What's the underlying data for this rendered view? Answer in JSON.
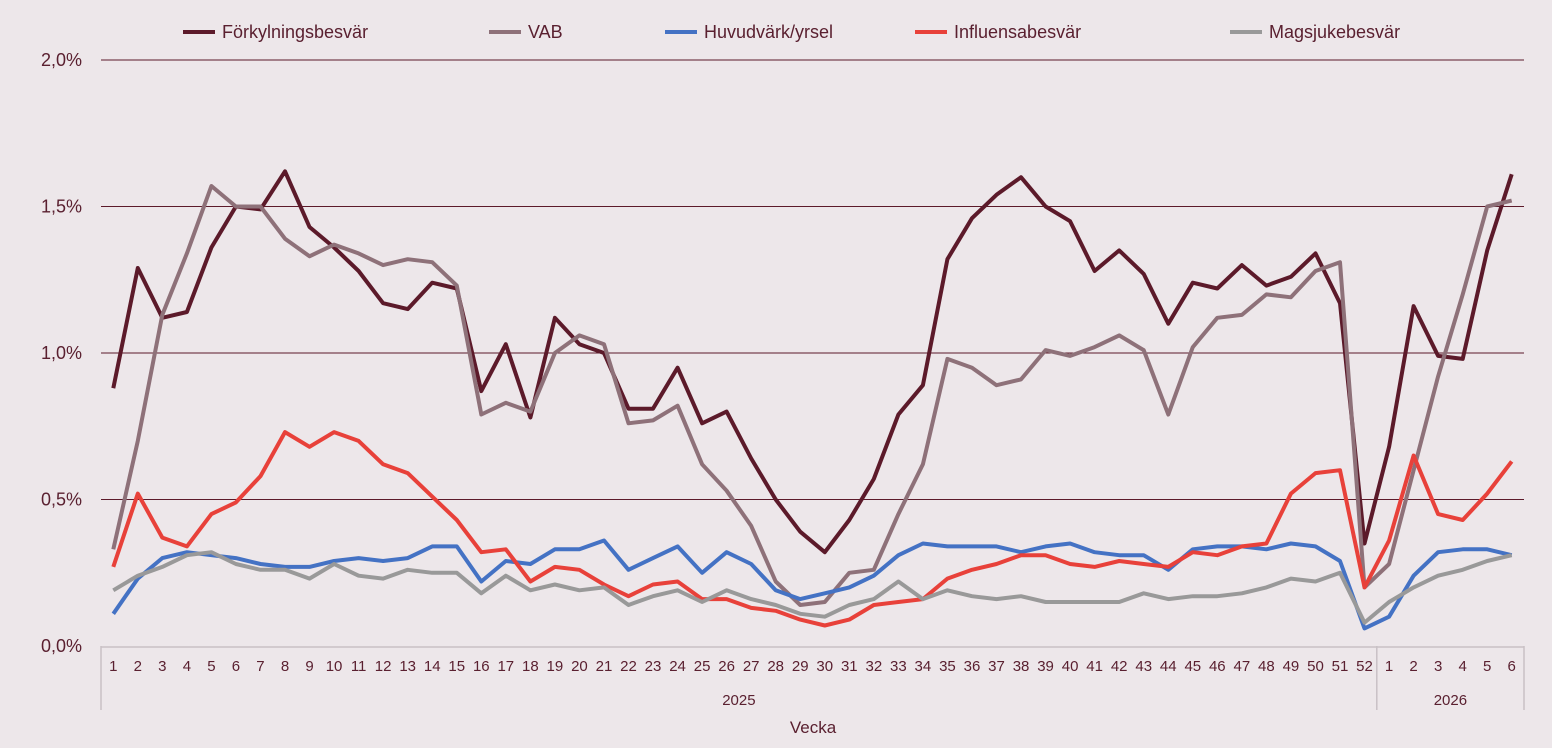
{
  "chart_data": {
    "type": "line",
    "title": "",
    "xlabel": "Vecka",
    "ylabel": "",
    "ylim": [
      0,
      2.0
    ],
    "y_ticks": [
      0,
      0.5,
      1.0,
      1.5,
      2.0
    ],
    "y_tick_labels": [
      "0,0%",
      "0,5%",
      "1,0%",
      "1,5%",
      "2,0%"
    ],
    "grid": true,
    "legend_position": "top",
    "categories": [
      "1",
      "2",
      "3",
      "4",
      "5",
      "6",
      "7",
      "8",
      "9",
      "10",
      "11",
      "12",
      "13",
      "14",
      "15",
      "16",
      "17",
      "18",
      "19",
      "20",
      "21",
      "22",
      "23",
      "24",
      "25",
      "26",
      "27",
      "28",
      "29",
      "30",
      "31",
      "32",
      "33",
      "34",
      "35",
      "36",
      "37",
      "38",
      "39",
      "40",
      "41",
      "42",
      "43",
      "44",
      "45",
      "46",
      "47",
      "48",
      "49",
      "50",
      "51",
      "52",
      "1",
      "2",
      "3",
      "4",
      "5",
      "6"
    ],
    "category_groups": [
      {
        "label": "2025",
        "count": 52
      },
      {
        "label": "2026",
        "count": 6
      }
    ],
    "series": [
      {
        "name": "Förkylningsbesvär",
        "color": "#5c1a2a",
        "values": [
          0.88,
          1.29,
          1.12,
          1.14,
          1.36,
          1.5,
          1.49,
          1.62,
          1.43,
          1.36,
          1.28,
          1.17,
          1.15,
          1.24,
          1.22,
          0.87,
          1.03,
          0.78,
          1.12,
          1.03,
          1.0,
          0.81,
          0.81,
          0.95,
          0.76,
          0.8,
          0.64,
          0.5,
          0.39,
          0.32,
          0.43,
          0.57,
          0.79,
          0.89,
          1.32,
          1.46,
          1.54,
          1.6,
          1.5,
          1.45,
          1.28,
          1.35,
          1.27,
          1.1,
          1.24,
          1.22,
          1.3,
          1.23,
          1.26,
          1.34,
          1.17,
          0.35,
          0.68,
          1.16,
          0.99,
          0.98,
          1.35,
          1.61
        ]
      },
      {
        "name": "VAB",
        "color": "#8e7179",
        "values": [
          0.33,
          0.7,
          1.13,
          1.34,
          1.57,
          1.5,
          1.5,
          1.39,
          1.33,
          1.37,
          1.34,
          1.3,
          1.32,
          1.31,
          1.23,
          0.79,
          0.83,
          0.8,
          1.0,
          1.06,
          1.03,
          0.76,
          0.77,
          0.82,
          0.62,
          0.53,
          0.41,
          0.22,
          0.14,
          0.15,
          0.25,
          0.26,
          0.45,
          0.62,
          0.98,
          0.95,
          0.89,
          0.91,
          1.01,
          0.99,
          1.02,
          1.06,
          1.01,
          0.79,
          1.02,
          1.12,
          1.13,
          1.2,
          1.19,
          1.28,
          1.31,
          0.2,
          0.28,
          0.6,
          0.92,
          1.2,
          1.5,
          1.52
        ]
      },
      {
        "name": "Huvudvärk/yrsel",
        "color": "#4472c4",
        "values": [
          0.11,
          0.23,
          0.3,
          0.32,
          0.31,
          0.3,
          0.28,
          0.27,
          0.27,
          0.29,
          0.3,
          0.29,
          0.3,
          0.34,
          0.34,
          0.22,
          0.29,
          0.28,
          0.33,
          0.33,
          0.36,
          0.26,
          0.3,
          0.34,
          0.25,
          0.32,
          0.28,
          0.19,
          0.16,
          0.18,
          0.2,
          0.24,
          0.31,
          0.35,
          0.34,
          0.34,
          0.34,
          0.32,
          0.34,
          0.35,
          0.32,
          0.31,
          0.31,
          0.26,
          0.33,
          0.34,
          0.34,
          0.33,
          0.35,
          0.34,
          0.29,
          0.06,
          0.1,
          0.24,
          0.32,
          0.33,
          0.33,
          0.31
        ]
      },
      {
        "name": "Influensabesvär",
        "color": "#e8413a",
        "values": [
          0.27,
          0.52,
          0.37,
          0.34,
          0.45,
          0.49,
          0.58,
          0.73,
          0.68,
          0.73,
          0.7,
          0.62,
          0.59,
          0.51,
          0.43,
          0.32,
          0.33,
          0.22,
          0.27,
          0.26,
          0.21,
          0.17,
          0.21,
          0.22,
          0.16,
          0.16,
          0.13,
          0.12,
          0.09,
          0.07,
          0.09,
          0.14,
          0.15,
          0.16,
          0.23,
          0.26,
          0.28,
          0.31,
          0.31,
          0.28,
          0.27,
          0.29,
          0.28,
          0.27,
          0.32,
          0.31,
          0.34,
          0.35,
          0.52,
          0.59,
          0.6,
          0.2,
          0.36,
          0.65,
          0.45,
          0.43,
          0.52,
          0.63
        ]
      },
      {
        "name": "Magsjukebesvär",
        "color": "#999999",
        "values": [
          0.19,
          0.24,
          0.27,
          0.31,
          0.32,
          0.28,
          0.26,
          0.26,
          0.23,
          0.28,
          0.24,
          0.23,
          0.26,
          0.25,
          0.25,
          0.18,
          0.24,
          0.19,
          0.21,
          0.19,
          0.2,
          0.14,
          0.17,
          0.19,
          0.15,
          0.19,
          0.16,
          0.14,
          0.11,
          0.1,
          0.14,
          0.16,
          0.22,
          0.16,
          0.19,
          0.17,
          0.16,
          0.17,
          0.15,
          0.15,
          0.15,
          0.15,
          0.18,
          0.16,
          0.17,
          0.17,
          0.18,
          0.2,
          0.23,
          0.22,
          0.25,
          0.08,
          0.15,
          0.2,
          0.24,
          0.26,
          0.29,
          0.31
        ]
      }
    ]
  },
  "colors": {
    "background": "#ede7ea",
    "text": "#5a2030",
    "grid": "#5c1a2a",
    "axis": "#c9c1c5"
  }
}
